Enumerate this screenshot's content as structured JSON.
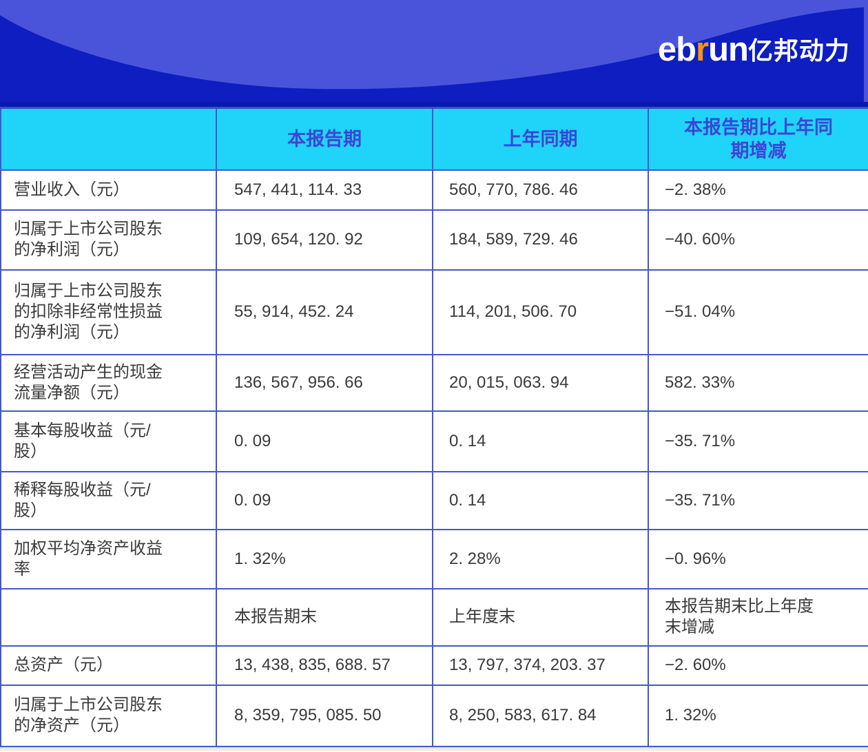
{
  "brand": {
    "logo_part1": "eb",
    "logo_part_r": "r",
    "logo_part2": "un",
    "logo_cn": "亿邦动力"
  },
  "colors": {
    "banner_dark_blue": "#0e1ec0",
    "banner_light_blue": "#4a54da",
    "header_cyan": "#1fd4f8",
    "header_text_blue": "#3c45d8",
    "table_border_blue": "#4257cd",
    "logo_orange": "#f5950f"
  },
  "table": {
    "columns": [
      "",
      "本报告期",
      "上年同期",
      "本报告期比上年同期增减"
    ],
    "rows": [
      {
        "label": "营业收入（元）",
        "current": "547, 441, 114. 33",
        "prior": "560, 770, 786. 46",
        "change": "−2. 38%"
      },
      {
        "label": "归属于上市公司股东的净利润（元）",
        "current": "109, 654, 120. 92",
        "prior": "184, 589, 729. 46",
        "change": "−40. 60%"
      },
      {
        "label": "归属于上市公司股东的扣除非经常性损益的净利润（元）",
        "current": "55, 914, 452. 24",
        "prior": "114, 201, 506. 70",
        "change": "−51. 04%"
      },
      {
        "label": "经营活动产生的现金流量净额（元）",
        "current": "136, 567, 956. 66",
        "prior": "20, 015, 063. 94",
        "change": "582. 33%"
      },
      {
        "label": "基本每股收益（元/股）",
        "current": "0. 09",
        "prior": "0. 14",
        "change": "−35. 71%"
      },
      {
        "label": "稀释每股收益（元/股）",
        "current": "0. 09",
        "prior": "0. 14",
        "change": "−35. 71%"
      },
      {
        "label": "加权平均净资产收益率",
        "current": "1. 32%",
        "prior": "2. 28%",
        "change": "−0. 96%"
      },
      {
        "label": "",
        "current": "本报告期末",
        "prior": "上年度末",
        "change": "本报告期末比上年度末增减"
      },
      {
        "label": "总资产（元）",
        "current": "13, 438, 835, 688. 57",
        "prior": "13, 797, 374, 203. 37",
        "change": "−2. 60%"
      },
      {
        "label": "归属于上市公司股东的净资产（元）",
        "current": "8, 359, 795, 085. 50",
        "prior": "8, 250, 583, 617. 84",
        "change": "1. 32%"
      }
    ]
  }
}
